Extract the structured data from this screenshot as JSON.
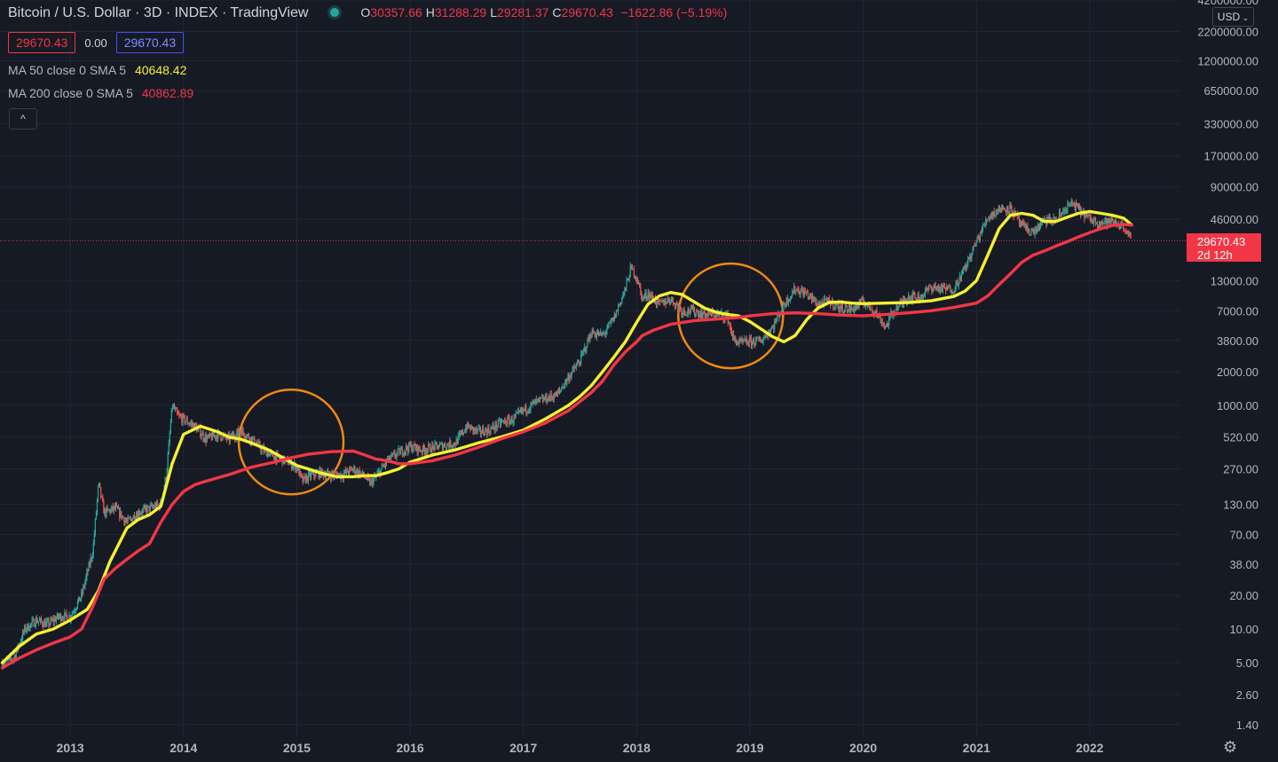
{
  "header": {
    "title": "Bitcoin / U.S. Dollar · 3D · INDEX · TradingView",
    "ohlc": [
      {
        "label": "O",
        "value": "30357.66"
      },
      {
        "label": "H",
        "value": "31288.29"
      },
      {
        "label": "L",
        "value": "29281.37"
      },
      {
        "label": "C",
        "value": "29670.43"
      }
    ],
    "change": "−1622.86 (−5.19%)"
  },
  "price_boxes": {
    "bid": "29670.43",
    "spread": "0.00",
    "ask": "29670.43"
  },
  "indicators": [
    {
      "name": "MA 50 close 0 SMA 5",
      "value": "40648.42",
      "color": "#f5f033"
    },
    {
      "name": "MA 200 close 0 SMA 5",
      "value": "40862.89",
      "color": "#f23645"
    }
  ],
  "controls": {
    "collapse_icon": "chevron-up-icon",
    "collapse_glyph": "^",
    "currency": "USD",
    "settings_icon": "gear-icon",
    "settings_glyph": "⚙"
  },
  "last_price": {
    "value": "29670.43",
    "countdown": "2d 12h"
  },
  "colors": {
    "background": "#161a25",
    "up": "#26a69a",
    "down": "#ef5350",
    "ma50": "#f5f033",
    "ma200": "#f23645",
    "annotation": "#f08a11"
  },
  "chart_data": {
    "type": "line",
    "title": "Bitcoin / U.S. Dollar",
    "y_scale": "log",
    "ylim": [
      1.1,
      4200000
    ],
    "y_ticks": [
      "4200000.00",
      "2200000.00",
      "1200000.00",
      "650000.00",
      "330000.00",
      "170000.00",
      "90000.00",
      "46000.00",
      "13000.00",
      "7000.00",
      "3800.00",
      "2000.00",
      "1000.00",
      "520.00",
      "270.00",
      "130.00",
      "70.00",
      "38.00",
      "20.00",
      "10.00",
      "5.00",
      "2.60",
      "1.40"
    ],
    "x_ticks": [
      "2013",
      "2014",
      "2015",
      "2016",
      "2017",
      "2018",
      "2019",
      "2020",
      "2021",
      "2022"
    ],
    "xlim": [
      2012.38,
      2022.8
    ],
    "series": [
      {
        "name": "Price",
        "x": [
          2012.4,
          2012.5,
          2012.6,
          2012.7,
          2012.8,
          2012.9,
          2013.0,
          2013.1,
          2013.2,
          2013.25,
          2013.3,
          2013.4,
          2013.5,
          2013.6,
          2013.7,
          2013.8,
          2013.85,
          2013.9,
          2013.95,
          2014.0,
          2014.1,
          2014.2,
          2014.3,
          2014.4,
          2014.5,
          2014.6,
          2014.7,
          2014.8,
          2014.9,
          2015.0,
          2015.05,
          2015.1,
          2015.2,
          2015.3,
          2015.4,
          2015.5,
          2015.6,
          2015.65,
          2015.7,
          2015.8,
          2015.9,
          2016.0,
          2016.1,
          2016.2,
          2016.3,
          2016.4,
          2016.5,
          2016.6,
          2016.7,
          2016.8,
          2016.9,
          2017.0,
          2017.1,
          2017.2,
          2017.3,
          2017.4,
          2017.5,
          2017.6,
          2017.7,
          2017.8,
          2017.9,
          2017.95,
          2018.0,
          2018.05,
          2018.1,
          2018.2,
          2018.3,
          2018.4,
          2018.5,
          2018.6,
          2018.7,
          2018.8,
          2018.85,
          2018.9,
          2019.0,
          2019.1,
          2019.2,
          2019.3,
          2019.4,
          2019.5,
          2019.6,
          2019.7,
          2019.8,
          2019.9,
          2020.0,
          2020.1,
          2020.2,
          2020.25,
          2020.3,
          2020.4,
          2020.5,
          2020.6,
          2020.7,
          2020.8,
          2020.9,
          2021.0,
          2021.1,
          2021.2,
          2021.3,
          2021.4,
          2021.5,
          2021.6,
          2021.7,
          2021.8,
          2021.85,
          2021.9,
          2022.0,
          2022.1,
          2022.2,
          2022.3,
          2022.37
        ],
        "values": [
          5,
          5.5,
          10,
          12,
          11,
          13,
          13,
          20,
          50,
          200,
          110,
          120,
          90,
          110,
          120,
          130,
          250,
          1000,
          800,
          750,
          650,
          500,
          550,
          500,
          600,
          500,
          400,
          350,
          320,
          280,
          210,
          230,
          250,
          240,
          240,
          270,
          230,
          200,
          230,
          320,
          380,
          430,
          400,
          420,
          440,
          460,
          650,
          580,
          600,
          700,
          740,
          900,
          1050,
          1150,
          1250,
          1800,
          2500,
          4500,
          4200,
          6000,
          11000,
          17000,
          14000,
          9000,
          10000,
          8000,
          9000,
          7000,
          7000,
          6500,
          6500,
          6300,
          4000,
          3600,
          3700,
          3800,
          5000,
          8000,
          11000,
          10000,
          8000,
          8500,
          7500,
          7200,
          8500,
          7000,
          5000,
          6500,
          7500,
          9500,
          9200,
          11500,
          11000,
          11000,
          17000,
          29000,
          48000,
          57000,
          58000,
          40000,
          35000,
          45000,
          45000,
          60000,
          63000,
          57000,
          46000,
          43000,
          44000,
          40000,
          29670
        ]
      },
      {
        "name": "MA 50 close 0 SMA 5",
        "x": [
          2012.4,
          2012.55,
          2012.7,
          2012.85,
          2013.0,
          2013.15,
          2013.25,
          2013.35,
          2013.5,
          2013.6,
          2013.7,
          2013.8,
          2013.9,
          2014.0,
          2014.15,
          2014.3,
          2014.4,
          2014.5,
          2014.6,
          2014.75,
          2014.9,
          2015.0,
          2015.1,
          2015.2,
          2015.35,
          2015.5,
          2015.6,
          2015.7,
          2015.8,
          2015.9,
          2016.0,
          2016.2,
          2016.4,
          2016.6,
          2016.8,
          2017.0,
          2017.2,
          2017.4,
          2017.5,
          2017.6,
          2017.7,
          2017.8,
          2017.9,
          2018.0,
          2018.1,
          2018.2,
          2018.3,
          2018.4,
          2018.5,
          2018.6,
          2018.7,
          2018.8,
          2018.9,
          2019.0,
          2019.1,
          2019.2,
          2019.3,
          2019.4,
          2019.5,
          2019.6,
          2019.7,
          2019.8,
          2019.9,
          2020.0,
          2020.2,
          2020.4,
          2020.6,
          2020.8,
          2020.9,
          2021.0,
          2021.1,
          2021.2,
          2021.3,
          2021.4,
          2021.5,
          2021.6,
          2021.7,
          2021.8,
          2021.9,
          2022.0,
          2022.1,
          2022.2,
          2022.3,
          2022.37
        ],
        "values": [
          5,
          7,
          9,
          10,
          12,
          15,
          22,
          40,
          80,
          95,
          105,
          125,
          300,
          550,
          650,
          580,
          520,
          500,
          460,
          400,
          330,
          290,
          270,
          250,
          230,
          230,
          235,
          235,
          250,
          270,
          310,
          360,
          400,
          460,
          520,
          600,
          760,
          1000,
          1200,
          1500,
          2000,
          2700,
          3700,
          5500,
          8000,
          9500,
          10200,
          9800,
          8500,
          7400,
          6800,
          6500,
          6300,
          5600,
          4800,
          4100,
          3700,
          4200,
          5800,
          7400,
          8300,
          8400,
          8200,
          8100,
          8200,
          8300,
          8600,
          9400,
          10500,
          13000,
          22000,
          38000,
          50000,
          52000,
          50000,
          44000,
          44000,
          48000,
          52000,
          54000,
          52000,
          50000,
          47000,
          41000
        ]
      },
      {
        "name": "MA 200 close 0 SMA 5",
        "x": [
          2012.4,
          2012.55,
          2012.7,
          2012.85,
          2013.0,
          2013.1,
          2013.2,
          2013.3,
          2013.4,
          2013.5,
          2013.6,
          2013.7,
          2013.8,
          2013.9,
          2014.0,
          2014.1,
          2014.2,
          2014.4,
          2014.6,
          2014.8,
          2014.95,
          2015.1,
          2015.3,
          2015.5,
          2015.6,
          2015.7,
          2015.8,
          2015.9,
          2016.0,
          2016.2,
          2016.4,
          2016.6,
          2016.8,
          2017.0,
          2017.2,
          2017.4,
          2017.6,
          2017.7,
          2017.8,
          2017.9,
          2018.0,
          2018.05,
          2018.15,
          2018.3,
          2018.5,
          2018.7,
          2018.9,
          2019.0,
          2019.2,
          2019.4,
          2019.6,
          2019.8,
          2020.0,
          2020.2,
          2020.4,
          2020.6,
          2020.8,
          2021.0,
          2021.1,
          2021.2,
          2021.3,
          2021.4,
          2021.5,
          2021.6,
          2021.7,
          2021.8,
          2021.9,
          2022.0,
          2022.1,
          2022.2,
          2022.3,
          2022.37
        ],
        "values": [
          4.5,
          5.5,
          6.5,
          7.5,
          8.5,
          10,
          16,
          28,
          35,
          42,
          50,
          58,
          90,
          130,
          170,
          195,
          210,
          240,
          280,
          310,
          340,
          365,
          385,
          390,
          360,
          330,
          320,
          300,
          300,
          320,
          360,
          420,
          500,
          580,
          700,
          900,
          1300,
          1650,
          2300,
          3000,
          3700,
          4200,
          4700,
          5300,
          5700,
          5900,
          6100,
          6300,
          6600,
          6700,
          6600,
          6400,
          6300,
          6500,
          6700,
          7000,
          7500,
          8200,
          9500,
          12000,
          15000,
          19000,
          22000,
          24000,
          26500,
          29000,
          32000,
          35000,
          38000,
          40500,
          41500,
          40800
        ]
      }
    ],
    "annotations": [
      {
        "type": "circle",
        "center": [
          2014.95,
          470
        ],
        "label": ""
      },
      {
        "type": "circle",
        "center": [
          2018.83,
          6300
        ],
        "label": ""
      }
    ],
    "current_price_line": 29670.43,
    "grid": true,
    "legend_position": "top-left"
  }
}
